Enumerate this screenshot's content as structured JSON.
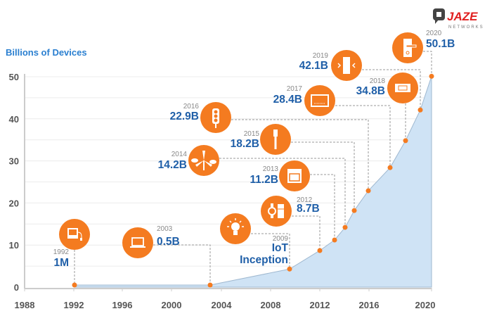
{
  "logo": {
    "brand": "JAZE",
    "sub": "NETWORKS"
  },
  "colors": {
    "accent": "#f47b20",
    "value_text": "#1f5fa8",
    "area_fill": "#cfe3f5",
    "axis_title": "#2a7fd0"
  },
  "chart_data": {
    "type": "area",
    "title": "",
    "ylabel": "Billions of Devices",
    "xlabel": "",
    "ylim": [
      0,
      50
    ],
    "yticks": [
      0,
      10,
      20,
      30,
      40,
      50
    ],
    "xticks": [
      1988,
      1992,
      1996,
      2000,
      2004,
      2008,
      2012,
      2016,
      2020
    ],
    "grid": true,
    "points": [
      {
        "year": 1992,
        "value": 0.001,
        "year_label": "1992",
        "value_label": "1M",
        "icon": "computer-icon"
      },
      {
        "year": 2003,
        "value": 0.5,
        "year_label": "2003",
        "value_label": "0.5B",
        "icon": "laptop-icon"
      },
      {
        "year": 2009,
        "value": 4.3,
        "year_label": "2009",
        "value_label": "IoT",
        "value_label2": "Inception",
        "icon": "lightbulb-icon"
      },
      {
        "year": 2012,
        "value": 8.7,
        "year_label": "2012",
        "value_label": "8.7B",
        "icon": "watch-fridge-icon"
      },
      {
        "year": 2013,
        "value": 11.2,
        "year_label": "2013",
        "value_label": "11.2B",
        "icon": "oven-icon"
      },
      {
        "year": 2014,
        "value": 14.2,
        "year_label": "2014",
        "value_label": "14.2B",
        "icon": "wind-turbine-icon"
      },
      {
        "year": 2015,
        "value": 18.2,
        "year_label": "2015",
        "value_label": "18.2B",
        "icon": "toothbrush-icon"
      },
      {
        "year": 2016,
        "value": 22.9,
        "year_label": "2016",
        "value_label": "22.9B",
        "icon": "traffic-light-icon"
      },
      {
        "year": 2017,
        "value": 28.4,
        "year_label": "2017",
        "value_label": "28.4B",
        "icon": "tv-icon"
      },
      {
        "year": 2018,
        "value": 34.8,
        "year_label": "2018",
        "value_label": "34.8B",
        "icon": "thermostat-icon"
      },
      {
        "year": 2019,
        "value": 42.1,
        "year_label": "2019",
        "value_label": "42.1B",
        "icon": "power-outlet-icon"
      },
      {
        "year": 2020,
        "value": 50.1,
        "year_label": "2020",
        "value_label": "50.1B",
        "icon": "door-lock-icon"
      }
    ]
  }
}
